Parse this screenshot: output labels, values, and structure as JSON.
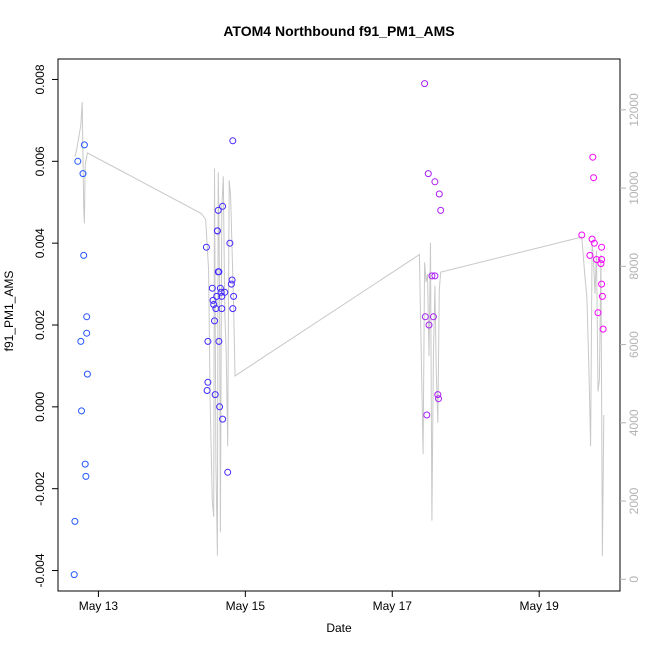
{
  "chart_data": {
    "type": "scatter",
    "title": "ATOM4 Northbound f91_PM1_AMS",
    "xlabel": "Date",
    "ylabel": "f91_PM1_AMS",
    "x_axis": {
      "range": [
        12.45,
        20.1
      ],
      "ticks": [
        13,
        15,
        17,
        19
      ],
      "tick_labels": [
        "May 13",
        "May 15",
        "May 17",
        "May 19"
      ]
    },
    "y_left": {
      "range": [
        -0.0045,
        0.0085
      ],
      "ticks": [
        -0.004,
        -0.002,
        0.0,
        0.002,
        0.004,
        0.006,
        0.008
      ],
      "tick_labels": [
        "-0.004",
        "-0.002",
        "0.000",
        "0.002",
        "0.004",
        "0.006",
        "0.008"
      ]
    },
    "y_right": {
      "range": [
        -300,
        13300
      ],
      "ticks": [
        0,
        2000,
        4000,
        6000,
        8000,
        10000,
        12000
      ],
      "tick_labels": [
        "0",
        "2000",
        "4000",
        "6000",
        "8000",
        "10000",
        "12000"
      ],
      "color": "#b3b3b3"
    },
    "grid": false,
    "series": [
      {
        "marker": "open-circle",
        "color_gradient": [
          "#1f5fff",
          "#3a2bff",
          "#7a1fff",
          "#c01ff0",
          "#ff00ff"
        ],
        "points": [
          [
            12.67,
            -0.0041
          ],
          [
            12.68,
            -0.0028
          ],
          [
            12.72,
            0.006
          ],
          [
            12.76,
            0.0016
          ],
          [
            12.77,
            -0.0001
          ],
          [
            12.79,
            0.0057
          ],
          [
            12.8,
            0.0037
          ],
          [
            12.81,
            0.0064
          ],
          [
            12.82,
            -0.0014
          ],
          [
            12.83,
            -0.0017
          ],
          [
            12.84,
            0.0022
          ],
          [
            12.84,
            0.0018
          ],
          [
            12.85,
            0.0008
          ],
          [
            14.47,
            0.0039
          ],
          [
            14.49,
            0.0006
          ],
          [
            14.48,
            0.0004
          ],
          [
            14.49,
            0.0016
          ],
          [
            14.55,
            0.0029
          ],
          [
            14.56,
            0.0026
          ],
          [
            14.57,
            0.0025
          ],
          [
            14.58,
            0.0021
          ],
          [
            14.59,
            0.0003
          ],
          [
            14.6,
            0.0024
          ],
          [
            14.61,
            0.0027
          ],
          [
            14.62,
            0.0043
          ],
          [
            14.62,
            0.0043
          ],
          [
            14.63,
            0.0048
          ],
          [
            14.63,
            0.0033
          ],
          [
            14.64,
            0.0033
          ],
          [
            14.64,
            0.0016
          ],
          [
            14.65,
            0.0
          ],
          [
            14.66,
            0.0029
          ],
          [
            14.67,
            0.0028
          ],
          [
            14.68,
            0.0027
          ],
          [
            14.68,
            0.0024
          ],
          [
            14.69,
            0.0049
          ],
          [
            14.69,
            -0.0003
          ],
          [
            14.72,
            0.0028
          ],
          [
            14.76,
            -0.0016
          ],
          [
            14.79,
            0.004
          ],
          [
            14.81,
            0.003
          ],
          [
            14.82,
            0.0031
          ],
          [
            14.83,
            0.0024
          ],
          [
            14.84,
            0.0027
          ],
          [
            14.83,
            0.0065
          ],
          [
            17.44,
            0.0079
          ],
          [
            17.45,
            0.0022
          ],
          [
            17.47,
            -0.0002
          ],
          [
            17.49,
            0.0057
          ],
          [
            17.5,
            0.002
          ],
          [
            17.54,
            0.0032
          ],
          [
            17.56,
            0.0022
          ],
          [
            17.58,
            0.0055
          ],
          [
            17.58,
            0.0032
          ],
          [
            17.62,
            0.0003
          ],
          [
            17.63,
            0.0002
          ],
          [
            17.64,
            0.0052
          ],
          [
            17.66,
            0.0048
          ],
          [
            19.58,
            0.0042
          ],
          [
            19.69,
            0.0037
          ],
          [
            19.72,
            0.0041
          ],
          [
            19.73,
            0.0061
          ],
          [
            19.74,
            0.0056
          ],
          [
            19.75,
            0.004
          ],
          [
            19.78,
            0.0036
          ],
          [
            19.8,
            0.0023
          ],
          [
            19.84,
            0.0035
          ],
          [
            19.85,
            0.0039
          ],
          [
            19.85,
            0.0036
          ],
          [
            19.85,
            0.003
          ],
          [
            19.86,
            0.0027
          ],
          [
            19.87,
            0.0019
          ]
        ]
      },
      {
        "type": "line",
        "axis": "right",
        "color": "#c8c8c8",
        "points": [
          [
            12.68,
            10800
          ],
          [
            12.7,
            10950
          ],
          [
            12.76,
            11600
          ],
          [
            12.78,
            12200
          ],
          [
            12.8,
            9500
          ],
          [
            12.81,
            9100
          ],
          [
            12.82,
            10600
          ],
          [
            12.85,
            10900
          ],
          [
            14.4,
            9350
          ],
          [
            14.46,
            9200
          ],
          [
            14.5,
            7900
          ],
          [
            14.52,
            4600
          ],
          [
            14.55,
            2000
          ],
          [
            14.57,
            1600
          ],
          [
            14.58,
            10500
          ],
          [
            14.6,
            3000
          ],
          [
            14.62,
            600
          ],
          [
            14.63,
            10400
          ],
          [
            14.64,
            9200
          ],
          [
            14.65,
            7200
          ],
          [
            14.66,
            1200
          ],
          [
            14.68,
            9500
          ],
          [
            14.7,
            10300
          ],
          [
            14.72,
            6800
          ],
          [
            14.74,
            5800
          ],
          [
            14.76,
            3400
          ],
          [
            14.78,
            10200
          ],
          [
            14.8,
            9800
          ],
          [
            14.84,
            7000
          ],
          [
            14.86,
            5200
          ],
          [
            17.37,
            8300
          ],
          [
            17.42,
            3200
          ],
          [
            17.44,
            8100
          ],
          [
            17.46,
            7600
          ],
          [
            17.48,
            7800
          ],
          [
            17.5,
            5700
          ],
          [
            17.52,
            8600
          ],
          [
            17.54,
            1500
          ],
          [
            17.56,
            5700
          ],
          [
            17.58,
            7500
          ],
          [
            17.6,
            5300
          ],
          [
            17.62,
            4000
          ],
          [
            17.64,
            7400
          ],
          [
            17.66,
            7850
          ],
          [
            19.58,
            8750
          ],
          [
            19.62,
            7800
          ],
          [
            19.65,
            7200
          ],
          [
            19.68,
            5200
          ],
          [
            19.7,
            3400
          ],
          [
            19.72,
            8600
          ],
          [
            19.74,
            8100
          ],
          [
            19.76,
            7300
          ],
          [
            19.78,
            8400
          ],
          [
            19.8,
            4800
          ],
          [
            19.82,
            5100
          ],
          [
            19.84,
            8300
          ],
          [
            19.86,
            600
          ],
          [
            19.88,
            4200
          ]
        ]
      }
    ]
  }
}
